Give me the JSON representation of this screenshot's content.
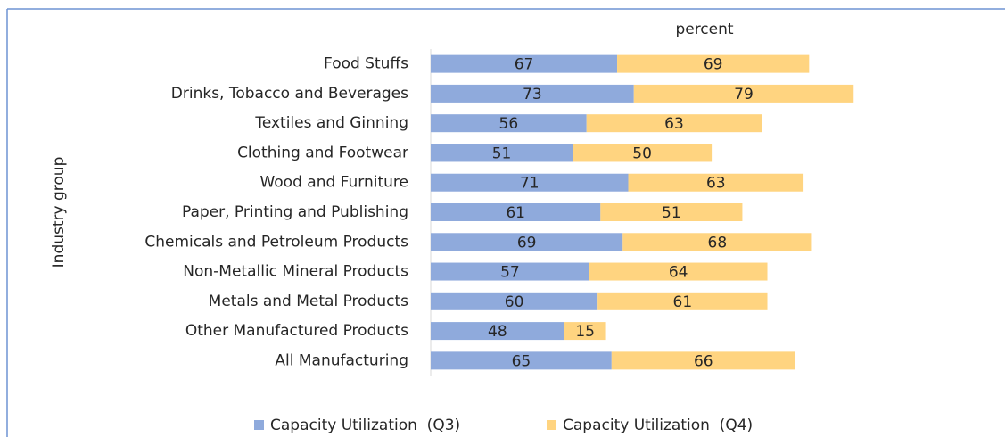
{
  "chart_data": {
    "type": "stacked-bar-horizontal",
    "x_label": "percent",
    "y_label": "Industry group",
    "categories": [
      "Food Stuffs",
      "Drinks, Tobacco and Beverages",
      "Textiles and Ginning",
      "Clothing and Footwear",
      "Wood and Furniture",
      "Paper, Printing and Publishing",
      "Chemicals and Petroleum Products",
      "Non-Metallic Mineral Products",
      "Metals and Metal Products",
      "Other Manufactured Products",
      "All Manufacturing"
    ],
    "series": [
      {
        "name": "Capacity Utilization  (Q3)",
        "color": "#8faadc",
        "values": [
          67,
          73,
          56,
          51,
          71,
          61,
          69,
          57,
          60,
          48,
          65
        ]
      },
      {
        "name": "Capacity Utilization  (Q4)",
        "color": "#ffd480",
        "values": [
          69,
          79,
          63,
          50,
          63,
          51,
          68,
          64,
          61,
          15,
          66
        ]
      }
    ],
    "xlim": [
      0,
      200
    ],
    "legend": "bottom"
  }
}
